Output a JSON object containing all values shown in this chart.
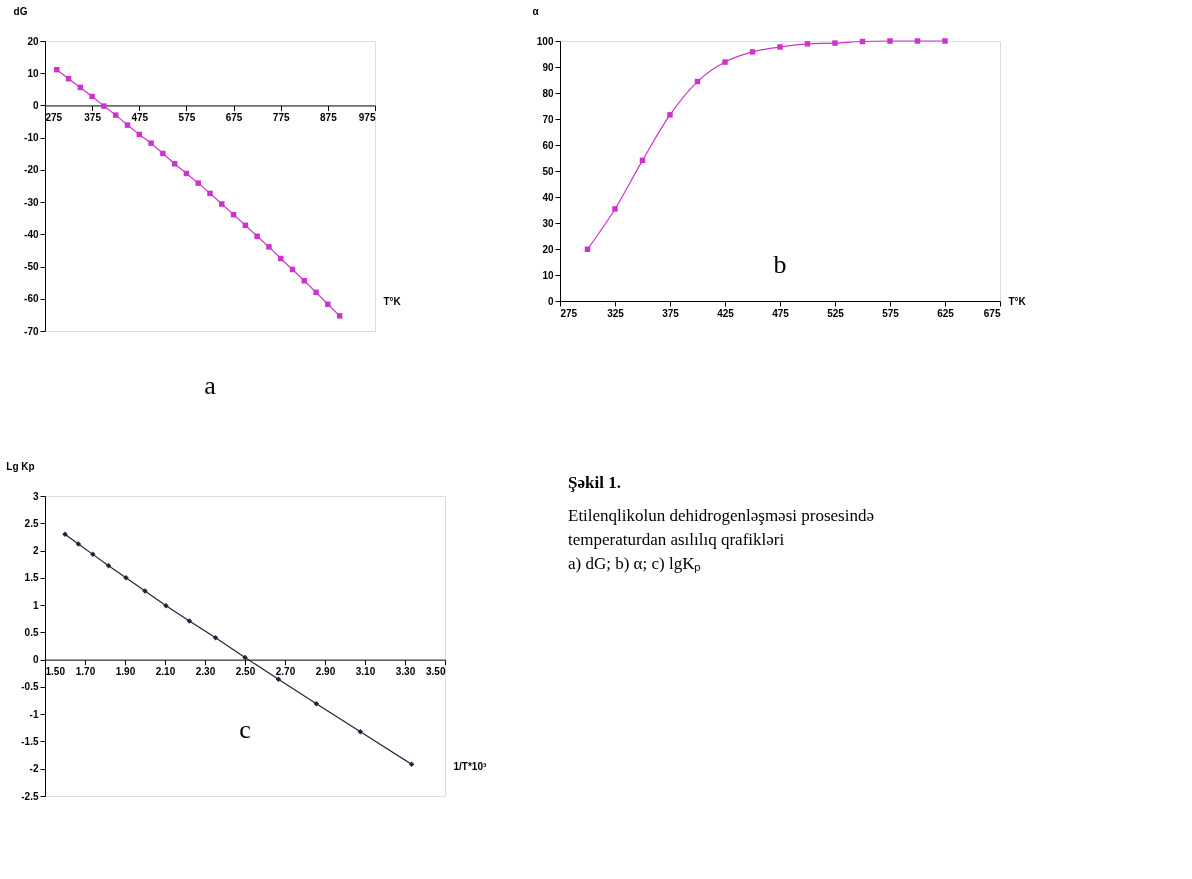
{
  "chart_data": [
    {
      "type": "line",
      "ylabel": "dG",
      "xlabel": "T°K",
      "annotations": [
        "a"
      ],
      "x": [
        300,
        325,
        350,
        375,
        400,
        425,
        450,
        475,
        500,
        525,
        550,
        575,
        600,
        625,
        650,
        675,
        700,
        725,
        750,
        775,
        800,
        825,
        850,
        875,
        900
      ],
      "series": [
        {
          "color": "#cc33cc",
          "values": [
            11.1,
            8.3,
            5.6,
            2.8,
            -0.2,
            -3.0,
            -6.1,
            -9.0,
            -11.7,
            -14.9,
            -18.1,
            -21.1,
            -24.1,
            -27.3,
            -30.6,
            -33.9,
            -37.2,
            -40.6,
            -43.9,
            -47.5,
            -50.9,
            -54.4,
            -58.0,
            -61.7,
            -65.3
          ]
        }
      ],
      "xlim": [
        275,
        975
      ],
      "xticks": [
        275,
        375,
        475,
        575,
        675,
        775,
        875,
        975
      ],
      "ylim": [
        -70,
        20
      ],
      "yticks": [
        20,
        10,
        0,
        -10,
        -20,
        -30,
        -40,
        -50,
        -60,
        -70
      ],
      "marker": "square",
      "line_style": "solid",
      "grid": false,
      "legend": false
    },
    {
      "type": "line",
      "ylabel": "α",
      "xlabel": "T°K",
      "annotations": [
        "b"
      ],
      "x": [
        300,
        325,
        350,
        375,
        400,
        425,
        450,
        475,
        500,
        525,
        550,
        575,
        600,
        625
      ],
      "series": [
        {
          "color": "#cc33cc",
          "values": [
            19.9,
            35.4,
            54.1,
            71.6,
            84.4,
            91.9,
            95.8,
            97.7,
            98.9,
            99.2,
            99.8,
            100,
            100,
            100
          ]
        }
      ],
      "xlim": [
        275,
        675
      ],
      "xticks": [
        275,
        325,
        375,
        425,
        475,
        525,
        575,
        625,
        675
      ],
      "ylim": [
        0,
        100
      ],
      "yticks": [
        0,
        10,
        20,
        30,
        40,
        50,
        60,
        70,
        80,
        90,
        100
      ],
      "marker": "square",
      "line_style": "solid",
      "grid": false,
      "legend": false
    },
    {
      "type": "line",
      "ylabel": "Lg Kp",
      "xlabel": "1/T*10³",
      "annotations": [
        "c"
      ],
      "x": [
        1.6,
        1.667,
        1.739,
        1.818,
        1.905,
        2.0,
        2.105,
        2.222,
        2.353,
        2.5,
        2.667,
        2.857,
        3.077,
        3.333
      ],
      "series": [
        {
          "color": "#22223a",
          "values": [
            2.3,
            2.12,
            1.93,
            1.72,
            1.5,
            1.26,
            0.99,
            0.71,
            0.4,
            0.04,
            -0.36,
            -0.81,
            -1.32,
            -1.92
          ]
        }
      ],
      "xlim": [
        1.5,
        3.5
      ],
      "xticks": [
        {
          "value": 1.5,
          "label": "1.50"
        },
        {
          "value": 1.7,
          "label": "1.70"
        },
        {
          "value": 1.9,
          "label": "1.90"
        },
        {
          "value": 2.1,
          "label": "2.10"
        },
        {
          "value": 2.3,
          "label": "2.30"
        },
        {
          "value": 2.5,
          "label": "2.50"
        },
        {
          "value": 2.7,
          "label": "2.70"
        },
        {
          "value": 2.9,
          "label": "2.90"
        },
        {
          "value": 3.1,
          "label": "3.10"
        },
        {
          "value": 3.3,
          "label": "3.30"
        },
        {
          "value": 3.5,
          "label": "3.50"
        }
      ],
      "ylim": [
        -2.5,
        3
      ],
      "yticks": [
        3,
        2.5,
        2,
        1.5,
        1,
        0.5,
        0,
        -0.5,
        -1,
        -1.5,
        -2,
        -2.5
      ],
      "marker": "diamond",
      "line_style": "solid",
      "grid": false,
      "legend": false
    },
    {
      "type": "other",
      "title": "Şəkil 1.",
      "annotations": [
        "Etilenqlikolun dehidrogenləşməsi prosesində temperaturdan asılılıq qrafikləri",
        "a) dG; b) α; c) lgKₚ"
      ]
    }
  ]
}
